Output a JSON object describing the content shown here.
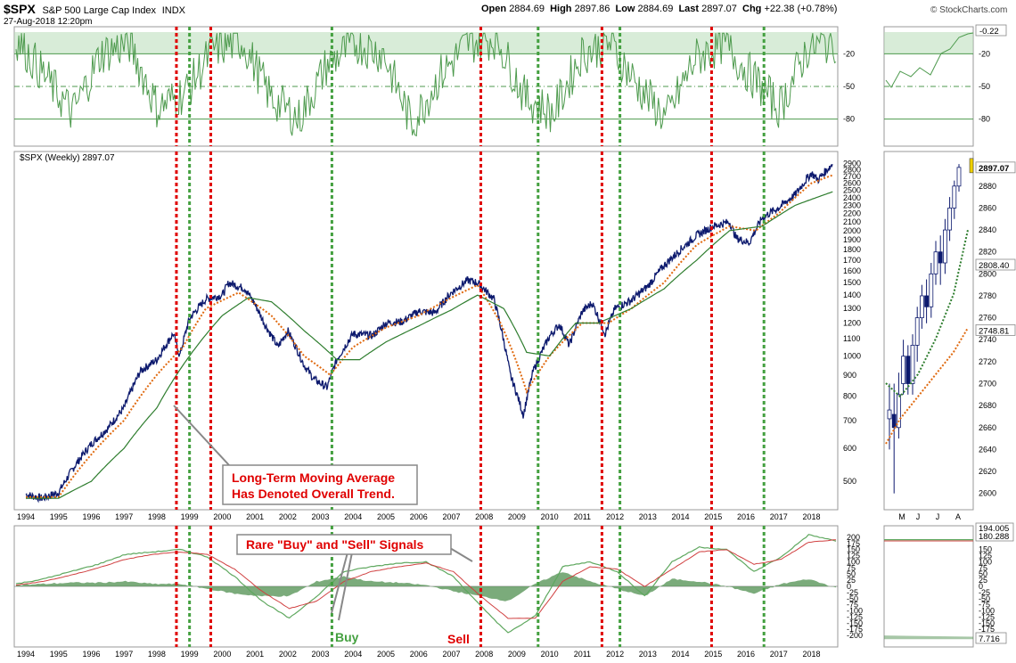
{
  "header": {
    "symbol": "$SPX",
    "name": "S&P 500 Large Cap Index",
    "exchange": "INDX",
    "datetime": "27-Aug-2018 12:20pm",
    "open_label": "Open",
    "open": "2884.69",
    "high_label": "High",
    "high": "2897.86",
    "low_label": "Low",
    "low": "2884.69",
    "last_label": "Last",
    "last": "2897.07",
    "chg_label": "Chg",
    "chg": "+22.38 (+0.78%)",
    "brand": "© StockCharts.com"
  },
  "colors": {
    "price": "#0d1a6e",
    "ma_short": "#e06a10",
    "ma_long": "#2e7d2e",
    "signal_sell": "#e00000",
    "signal_buy": "#44a040",
    "rsi": "#4d9a4d",
    "annotation": "#e00000"
  },
  "chart_data": [
    {
      "type": "line",
      "name": "indicator-panel",
      "series": [
        {
          "name": "oscillator",
          "values": [
            -5,
            -40,
            -75,
            -20,
            -10,
            -70,
            -55,
            -15,
            -8,
            -60,
            -80,
            -30,
            -10,
            -20,
            -85,
            -40,
            -10,
            -5,
            -60,
            -75,
            -20,
            -10,
            -50,
            -80,
            -25,
            -10,
            -40,
            -70,
            -15,
            -8
          ]
        }
      ],
      "ylim": [
        -100,
        0
      ],
      "ticks": [
        "-20",
        "-50",
        "-80"
      ],
      "last_value": "-0.22"
    },
    {
      "type": "line",
      "title": "$SPX (Weekly) 2897.07",
      "scale": "log",
      "years": [
        1994,
        1995,
        1996,
        1997,
        1998,
        1999,
        2000,
        2001,
        2002,
        2003,
        2004,
        2005,
        2006,
        2007,
        2008,
        2009,
        2010,
        2011,
        2012,
        2013,
        2014,
        2015,
        2016,
        2017,
        2018
      ],
      "x_ticks": [
        "1994",
        "1995",
        "1996",
        "1997",
        "1998",
        "1999",
        "2000",
        "2001",
        "2002",
        "2003",
        "2004",
        "2005",
        "2006",
        "2007",
        "2008",
        "2009",
        "2010",
        "2011",
        "2012",
        "2013",
        "2014",
        "2015",
        "2016",
        "2017",
        "2018"
      ],
      "y_ticks": [
        "500",
        "600",
        "700",
        "800",
        "900",
        "1000",
        "1100",
        "1200",
        "1300",
        "1400",
        "1500",
        "1600",
        "1700",
        "1800",
        "1900",
        "2000",
        "2100",
        "2200",
        "2300",
        "2400",
        "2500",
        "2600",
        "2700",
        "2800",
        "2900"
      ],
      "ylim": [
        440,
        2950
      ],
      "series": [
        {
          "name": "price",
          "x": [
            1994.0,
            1994.5,
            1995.0,
            1995.5,
            1996.0,
            1996.5,
            1997.0,
            1997.5,
            1998.0,
            1998.5,
            1998.7,
            1999.0,
            1999.5,
            2000.0,
            2000.2,
            2000.7,
            2001.0,
            2001.3,
            2001.7,
            2002.0,
            2002.5,
            2002.8,
            2003.2,
            2003.5,
            2004.0,
            2004.6,
            2005.0,
            2005.5,
            2006.0,
            2006.5,
            2007.0,
            2007.5,
            2007.8,
            2008.3,
            2008.8,
            2009.2,
            2009.5,
            2010.0,
            2010.3,
            2010.6,
            2011.0,
            2011.3,
            2011.7,
            2012.0,
            2012.5,
            2013.0,
            2013.5,
            2014.0,
            2014.5,
            2015.0,
            2015.5,
            2015.7,
            2016.1,
            2016.5,
            2017.0,
            2017.5,
            2018.0,
            2018.2,
            2018.65
          ],
          "values": [
            465,
            455,
            470,
            545,
            615,
            670,
            750,
            920,
            980,
            1130,
            1000,
            1230,
            1370,
            1400,
            1500,
            1450,
            1330,
            1190,
            1050,
            1150,
            950,
            880,
            840,
            980,
            1130,
            1120,
            1200,
            1210,
            1280,
            1270,
            1420,
            1520,
            1500,
            1370,
            900,
            720,
            920,
            1115,
            1190,
            1060,
            1280,
            1340,
            1130,
            1300,
            1360,
            1470,
            1650,
            1800,
            1950,
            2050,
            2100,
            1920,
            1870,
            2150,
            2270,
            2440,
            2750,
            2650,
            2897
          ]
        },
        {
          "name": "ma-short",
          "x": [
            1994.0,
            1995.0,
            1996.0,
            1997.0,
            1998.0,
            1998.8,
            1999.5,
            2000.5,
            2001.5,
            2002.5,
            2003.3,
            2004.0,
            2005.0,
            2006.0,
            2007.0,
            2007.8,
            2008.5,
            2009.3,
            2010.0,
            2011.0,
            2011.8,
            2012.5,
            2013.5,
            2014.5,
            2015.5,
            2016.3,
            2017.0,
            2018.0,
            2018.65
          ],
          "values": [
            458,
            458,
            580,
            700,
            900,
            1050,
            1300,
            1420,
            1250,
            1000,
            900,
            1050,
            1170,
            1250,
            1380,
            1480,
            1200,
            820,
            1000,
            1200,
            1200,
            1300,
            1500,
            1850,
            2050,
            2000,
            2200,
            2600,
            2720
          ]
        },
        {
          "name": "ma-long",
          "x": [
            1994.0,
            1995.0,
            1996.0,
            1997.0,
            1998.0,
            1999.0,
            2000.0,
            2000.8,
            2001.5,
            2002.5,
            2003.5,
            2004.2,
            2005.0,
            2006.0,
            2007.0,
            2007.8,
            2008.6,
            2009.3,
            2010.0,
            2010.8,
            2011.5,
            2012.5,
            2013.5,
            2014.5,
            2015.5,
            2016.5,
            2017.5,
            2018.65
          ],
          "values": [
            455,
            455,
            500,
            600,
            750,
            1000,
            1250,
            1380,
            1350,
            1150,
            980,
            980,
            1080,
            1180,
            1290,
            1400,
            1300,
            1020,
            1000,
            1200,
            1200,
            1300,
            1450,
            1700,
            2000,
            2050,
            2300,
            2480
          ]
        }
      ]
    },
    {
      "type": "line",
      "name": "macd-panel",
      "ylim": [
        -225,
        225
      ],
      "y_ticks": [
        "200",
        "175",
        "150",
        "125",
        "100",
        "75",
        "50",
        "25",
        "0",
        "-25",
        "-50",
        "-75",
        "-100",
        "-125",
        "-150",
        "-175",
        "-200"
      ],
      "series": [
        {
          "name": "macd",
          "values": [
            10,
            30,
            60,
            90,
            130,
            140,
            150,
            120,
            40,
            -60,
            -130,
            -40,
            60,
            80,
            95,
            100,
            40,
            -80,
            -190,
            -120,
            80,
            100,
            60,
            -40,
            100,
            160,
            150,
            60,
            120,
            210,
            185
          ]
        },
        {
          "name": "signal",
          "values": [
            5,
            20,
            45,
            75,
            110,
            130,
            140,
            130,
            70,
            -20,
            -90,
            -60,
            20,
            60,
            80,
            95,
            60,
            -40,
            -130,
            -130,
            20,
            80,
            70,
            0,
            70,
            140,
            150,
            90,
            110,
            180,
            190
          ]
        },
        {
          "name": "histogram",
          "values": [
            5,
            10,
            15,
            15,
            20,
            10,
            10,
            -10,
            -30,
            -40,
            -40,
            20,
            40,
            20,
            15,
            5,
            -20,
            -40,
            -60,
            10,
            60,
            20,
            -10,
            -40,
            30,
            20,
            0,
            -30,
            10,
            30,
            -5
          ]
        }
      ],
      "x_ticks": [
        "1994",
        "1995",
        "1996",
        "1997",
        "1998",
        "1999",
        "2000",
        "2001",
        "2002",
        "2003",
        "2004",
        "2005",
        "2006",
        "2007",
        "2008",
        "2009",
        "2010",
        "2011",
        "2012",
        "2013",
        "2014",
        "2015",
        "2016",
        "2017",
        "2018"
      ]
    },
    {
      "type": "line",
      "name": "daily-inset",
      "x_ticks": [
        "M",
        "J",
        "J",
        "A"
      ],
      "y_ticks": [
        "2880",
        "2860",
        "2840",
        "2820",
        "2800",
        "2780",
        "2760",
        "2740",
        "2720",
        "2700",
        "2680",
        "2660",
        "2640",
        "2620",
        "2600"
      ],
      "ylim": [
        2590,
        2905
      ],
      "value_labels": [
        "2897.07",
        "2808.40",
        "2748.81"
      ],
      "macd_labels": [
        "194.005",
        "180.288",
        "7.716"
      ],
      "rsi_last": "-0.22",
      "rsi_ticks": [
        "-20",
        "-50",
        "-80"
      ]
    }
  ],
  "signals": [
    {
      "kind": "sell",
      "date": 1998.6
    },
    {
      "kind": "buy",
      "date": 1999.0
    },
    {
      "kind": "sell",
      "date": 1999.65
    },
    {
      "kind": "buy",
      "date": 2003.35
    },
    {
      "kind": "sell",
      "date": 2007.9
    },
    {
      "kind": "buy",
      "date": 2009.65
    },
    {
      "kind": "sell",
      "date": 2011.6
    },
    {
      "kind": "buy",
      "date": 2012.15
    },
    {
      "kind": "sell",
      "date": 2014.95
    },
    {
      "kind": "buy",
      "date": 2016.55
    }
  ],
  "annotations": {
    "long_term": "Long-Term Moving Average\nHas Denoted Overall Trend.",
    "rare_signals": "Rare \"Buy\" and \"Sell\" Signals",
    "buy": "Buy",
    "sell": "Sell"
  }
}
